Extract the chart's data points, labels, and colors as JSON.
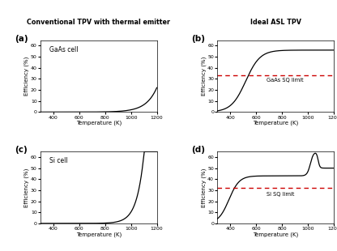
{
  "title_left": "Conventional TPV with thermal emitter",
  "title_right": "Ideal ASL TPV",
  "temp_range": [
    300,
    1200
  ],
  "ylim": [
    0,
    65
  ],
  "yticks": [
    0,
    10,
    20,
    30,
    40,
    50,
    60
  ],
  "xticks": [
    400,
    600,
    800,
    1000,
    1200
  ],
  "xlabel": "Temperature (K)",
  "ylabel": "Efficiency (%)",
  "gaas_sq_limit": 33.5,
  "si_sq_limit": 32.0,
  "line_color": "#000000",
  "dashed_color": "#cc0000",
  "label_a": "(a)",
  "label_b": "(b)",
  "label_c": "(c)",
  "label_d": "(d)",
  "cell_label_a": "GaAs cell",
  "cell_label_b": "GaAs SQ limit",
  "cell_label_c": "Si cell",
  "cell_label_d": "Si SQ limit",
  "bg_color": "#ffffff"
}
